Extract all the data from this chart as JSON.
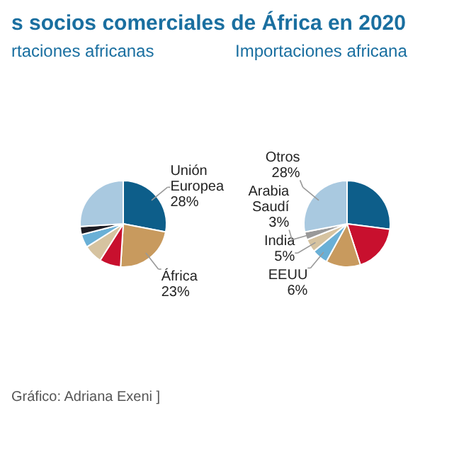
{
  "chart_data": [
    {
      "type": "pie",
      "title": "s socios comerciales de África en 2020",
      "subtitle": "rtaciones africanas",
      "annotations": [
        "Gráfico: Adriana Exeni ]"
      ],
      "categories": [
        "Unión Europea",
        "África",
        null,
        null,
        null,
        null,
        null
      ],
      "values": [
        28,
        23,
        8,
        7,
        5,
        3,
        26
      ],
      "value_labels": [
        "28%",
        "23%",
        null,
        null,
        null,
        null,
        null
      ],
      "colors": [
        "#0d5e8a",
        "#c89a5e",
        "#c8102e",
        "#d6c3a0",
        "#6ab0d6",
        "#1c1c24",
        "#a9c9e0"
      ]
    },
    {
      "type": "pie",
      "title": "Importaciones africana",
      "categories": [
        null,
        null,
        null,
        "EEUU",
        "India",
        "Arabia Saudí",
        "Otros"
      ],
      "values": [
        27,
        18,
        13,
        6,
        5,
        3,
        28
      ],
      "value_labels": [
        null,
        null,
        null,
        "6%",
        "5%",
        "3%",
        "28%"
      ],
      "colors": [
        "#0d5e8a",
        "#c8102e",
        "#c89a5e",
        "#6ab0d6",
        "#d6c3a0",
        "#999999",
        "#a9c9e0"
      ]
    }
  ]
}
